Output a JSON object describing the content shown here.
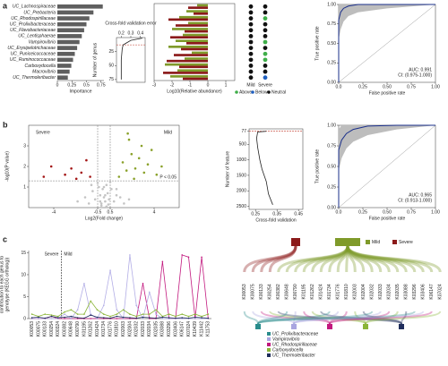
{
  "panels": [
    "a",
    "b",
    "c"
  ],
  "chart_data": [
    {
      "type": "hbar",
      "xlabel": "Importance",
      "categories": [
        "UC_Lachnospiraceae",
        "UC_Prebacteria",
        "UC_Rhodospirillaceae",
        "UC_Prolixibacteraceae",
        "UC_Flavobacteriaceae",
        "UC_Lentisphaerae",
        "Vampirovibrio",
        "UC_Erysipelotrichaceae",
        "UC_Puniceicoccaceae",
        "UC_Ruminococcaceae",
        "Carboxydocella",
        "Macrovibrio",
        "UC_Thermoleribacter"
      ],
      "values": [
        0.78,
        0.62,
        0.55,
        0.5,
        0.46,
        0.42,
        0.38,
        0.34,
        0.3,
        0.27,
        0.24,
        0.21,
        0.18
      ],
      "color": "#5f5f5f",
      "xlim": [
        0,
        0.8
      ],
      "xticks": [
        0,
        0.25,
        0.5,
        0.75
      ]
    },
    {
      "type": "line",
      "title": "Cross-fold validation error",
      "ylabel": "Number of genus",
      "x": [
        0.42,
        0.3,
        0.25,
        0.22,
        0.21,
        0.2,
        0.2
      ],
      "values": [
        1,
        5,
        10,
        13,
        20,
        40,
        75
      ],
      "color": "#222222",
      "threshold": 13,
      "threshold_color": "#c0392b",
      "xlim": [
        0.15,
        0.45
      ],
      "xticks": [
        0.2,
        0.3,
        0.4
      ],
      "ylim": [
        0,
        80
      ],
      "yticks": [
        25,
        50,
        75
      ],
      "y_reversed": true
    },
    {
      "type": "range",
      "xlabel": "Log10(Relative abundance)",
      "series": [
        {
          "color": "#7f9a2a",
          "values": [
            -0.6,
            -1.2,
            -1.6,
            -1.1,
            -2.0,
            -1.4,
            -1.8,
            -2.2,
            -0.9,
            -1.3,
            -2.4,
            -1.7,
            -2.1
          ]
        },
        {
          "color": "#8b1a1a",
          "values": [
            -1.1,
            -0.8,
            -2.2,
            -1.8,
            -1.3,
            -2.1,
            -1.2,
            -1.5,
            -1.9,
            -2.3,
            -1.6,
            -2.5,
            -1.4
          ]
        }
      ],
      "xlim": [
        -3,
        1.5
      ],
      "xticks": [
        -3,
        -2,
        -1,
        0,
        1
      ]
    },
    {
      "type": "dots",
      "columns": [
        "Mild",
        "Severe"
      ],
      "legend": [
        {
          "name": "Above",
          "color": "#3fae49"
        },
        {
          "name": "Below",
          "color": "#1f5fbf"
        },
        {
          "name": "Neutral",
          "color": "#111111"
        }
      ],
      "cells": [
        [
          "Neutral",
          "Neutral"
        ],
        [
          "Neutral",
          "Neutral"
        ],
        [
          "Neutral",
          "Above"
        ],
        [
          "Neutral",
          "Neutral"
        ],
        [
          "Neutral",
          "Neutral"
        ],
        [
          "Neutral",
          "Neutral"
        ],
        [
          "Neutral",
          "Above"
        ],
        [
          "Neutral",
          "Neutral"
        ],
        [
          "Neutral",
          "Above"
        ],
        [
          "Neutral",
          "Above"
        ],
        [
          "Neutral",
          "Neutral"
        ],
        [
          "Neutral",
          "Neutral"
        ],
        [
          "Neutral",
          "Below"
        ]
      ]
    },
    {
      "type": "roc",
      "xlabel": "False positive rate",
      "ylabel": "True positive rate",
      "annotation": [
        "AUC: 0.991",
        "CI: (0.975-1.000)"
      ],
      "x": [
        0,
        0,
        0.02,
        0.05,
        0.1,
        0.2,
        0.5,
        1
      ],
      "values": [
        0,
        0.8,
        0.9,
        0.95,
        0.98,
        1,
        1,
        1
      ],
      "ci_lower": [
        0,
        0.55,
        0.68,
        0.78,
        0.85,
        0.9,
        0.95,
        1
      ],
      "ci_upper": [
        0,
        1,
        1,
        1,
        1,
        1,
        1,
        1
      ],
      "color": "#1a2f8a",
      "band_color": "#bdbdbd",
      "xlim": [
        0,
        1
      ],
      "ylim": [
        0,
        1
      ],
      "xticks": [
        {
          "value": 0,
          "label": "0.0"
        },
        0.25,
        {
          "value": 0.5,
          "label": "0.50"
        },
        0.75,
        {
          "value": 1,
          "label": "1.00"
        }
      ],
      "yticks": [
        {
          "value": 0,
          "label": "0.00"
        },
        0.25,
        {
          "value": 0.5,
          "label": "0.50"
        },
        0.75,
        {
          "value": 1,
          "label": "1.00"
        }
      ]
    },
    {
      "type": "scatter",
      "xlabel": "Log2(Fold change)",
      "ylabel": "-log10(P value)",
      "annotation": "P < 0.05",
      "threshold": 1.3,
      "vlines": [
        -0.5,
        0.5
      ],
      "series": [
        {
          "color": "#c4c4c4",
          "x": [
            -2.1,
            -1.5,
            -1.2,
            -0.9,
            -0.7,
            -0.4,
            -0.3,
            -0.2,
            -0.1,
            0,
            0.1,
            0.2,
            0.3,
            0.4,
            0.6,
            0.8,
            1.0,
            1.3,
            1.6,
            2.0,
            -0.5,
            0.5,
            -0.2,
            0.2,
            0,
            -1,
            1,
            0.1,
            -0.3,
            0.35
          ],
          "values": [
            0.3,
            0.5,
            0.2,
            0.8,
            0.4,
            1.0,
            0.6,
            0.2,
            0.9,
            0.5,
            0.3,
            1.1,
            0.7,
            0.4,
            0.9,
            0.3,
            0.6,
            0.5,
            0.2,
            0.4,
            1.2,
            1.25,
            0.1,
            0.05,
            1.0,
            1.1,
            0.9,
            0.6,
            0.3,
            0.15
          ]
        },
        {
          "name": "Severe",
          "color": "#a31515",
          "x": [
            -4.8,
            -4.2,
            -3.1,
            -2.6,
            -2.2,
            -1.8,
            -1.4,
            -1.1
          ],
          "values": [
            1.5,
            2.0,
            1.6,
            1.9,
            1.4,
            1.7,
            2.3,
            1.5
          ]
        },
        {
          "name": "Mild",
          "color": "#8aa12a",
          "x": [
            1.2,
            1.5,
            1.8,
            2.0,
            2.2,
            2.5,
            2.8,
            3.0,
            3.2,
            3.5,
            3.8,
            4.2,
            4.6,
            2.4,
            1.9
          ],
          "values": [
            1.5,
            2.2,
            1.8,
            3.3,
            2.6,
            1.9,
            2.4,
            3.0,
            1.7,
            2.1,
            2.8,
            1.6,
            2.0,
            1.4,
            3.6
          ]
        }
      ],
      "xlim": [
        -6,
        6
      ],
      "xticks": [
        -4,
        -0.5,
        0.5,
        4
      ],
      "ylim": [
        0,
        4
      ],
      "yticks": [
        1,
        2,
        3
      ]
    },
    {
      "type": "line",
      "xlabel": "Cross-fold validation",
      "ylabel": "Number of feature",
      "x": [
        0.3,
        0.26,
        0.255,
        0.26,
        0.27,
        0.28,
        0.3,
        0.31,
        0.33
      ],
      "values": [
        77,
        100,
        300,
        600,
        1000,
        1300,
        1700,
        2100,
        2450
      ],
      "color": "#222222",
      "threshold": 77,
      "threshold_color": "#c0392b",
      "xlim": [
        0.22,
        0.47
      ],
      "xticks": [
        0.25,
        0.35,
        0.45
      ],
      "ylim": [
        0,
        2600
      ],
      "yticks": [
        77,
        500,
        1000,
        1500,
        2000,
        2500
      ],
      "y_reversed": true
    },
    {
      "type": "roc",
      "xlabel": "False positive rate",
      "ylabel": "True positive rate",
      "annotation": [
        "AUC: 0.965",
        "CI: (0.913-1.000)"
      ],
      "x": [
        0,
        0,
        0.03,
        0.08,
        0.15,
        0.3,
        0.6,
        1
      ],
      "values": [
        0,
        0.7,
        0.82,
        0.9,
        0.95,
        0.99,
        1,
        1
      ],
      "ci_lower": [
        0,
        0.45,
        0.6,
        0.72,
        0.8,
        0.88,
        0.95,
        1
      ],
      "ci_upper": [
        0,
        0.95,
        1,
        1,
        1,
        1,
        1,
        1
      ],
      "color": "#1a2f8a",
      "band_color": "#bdbdbd",
      "xlim": [
        0,
        1
      ],
      "ylim": [
        0,
        1
      ],
      "xticks": [
        {
          "value": 0,
          "label": "0.0"
        },
        0.25,
        {
          "value": 0.5,
          "label": "0.50"
        },
        0.75,
        {
          "value": 1,
          "label": "1.00"
        }
      ],
      "yticks": [
        {
          "value": 0,
          "label": "0.00"
        },
        0.25,
        {
          "value": 0.5,
          "label": "0.50"
        },
        0.75,
        {
          "value": 1,
          "label": "1.00"
        }
      ]
    },
    {
      "type": "multiline",
      "ylabel": [
        "Relative abundance (% of",
        "contribution to each genus to",
        "genotype (KEGG ortholog))"
      ],
      "annotation": [
        "Severe",
        "Mild"
      ],
      "divider_index": 5,
      "categories": [
        "K00053",
        "K00075",
        "K00133",
        "K00254",
        "K00324",
        "K00382",
        "K00648",
        "K00790",
        "K01195",
        "K01262",
        "K01424",
        "K01734",
        "K01776",
        "K01810",
        "K02003",
        "K02004",
        "K02032",
        "K02033",
        "K02034",
        "K02035",
        "K03088",
        "K03296",
        "K03406",
        "K06147",
        "K07024",
        "K10439",
        "K11442",
        "K11753"
      ],
      "series": [
        {
          "color": "#c2187e",
          "values": [
            0,
            0,
            0,
            0.5,
            0,
            0,
            0,
            0,
            0,
            0,
            0,
            0,
            0,
            0,
            0,
            0,
            0,
            8,
            0,
            0,
            13,
            0,
            0,
            14.5,
            14,
            0,
            14,
            0
          ]
        },
        {
          "color": "#b3aee6",
          "values": [
            0,
            0,
            0,
            0,
            0,
            1,
            0,
            2,
            8,
            1,
            0,
            3,
            11,
            2,
            0,
            14.5,
            3,
            0,
            6,
            1,
            0,
            0,
            0,
            0,
            0,
            0,
            0,
            0
          ]
        },
        {
          "color": "#8ab537",
          "values": [
            1,
            0.5,
            1,
            0.8,
            0.5,
            1.5,
            2,
            1,
            1,
            4,
            2,
            1,
            0.5,
            1,
            2,
            1,
            0.5,
            1,
            1,
            2,
            0.5,
            1,
            0.5,
            1,
            0.5,
            1,
            0.5,
            1
          ]
        },
        {
          "color": "#1f2d5c",
          "values": [
            0.2,
            0.3,
            0.1,
            0.5,
            0.2,
            0.3,
            0.5,
            0.2,
            0.1,
            0.8,
            0.3,
            0.2,
            0.1,
            0.5,
            0.3,
            0.2,
            0.1,
            0.3,
            0.2,
            0.1,
            0.3,
            0.2,
            0.1,
            0.2,
            0.1,
            0.3,
            0.2,
            0.1
          ]
        }
      ],
      "ylim": [
        0,
        15.5
      ],
      "yticks": [
        0,
        5,
        10,
        15
      ]
    },
    {
      "type": "sankey",
      "groups": [
        {
          "name": "Mild",
          "color": "#7f9a2a"
        },
        {
          "name": "Severe",
          "color": "#8b1a1a"
        }
      ],
      "categories": [
        "K00053",
        "K00075",
        "K00133",
        "K00254",
        "K00382",
        "K00648",
        "K00790",
        "K01195",
        "K01262",
        "K01424",
        "K01734",
        "K01776",
        "K01810",
        "K02003",
        "K02004",
        "K02032",
        "K02033",
        "K02034",
        "K02035",
        "K03088",
        "K03296",
        "K03406",
        "K06147",
        "K07024"
      ],
      "taxa": [
        {
          "name": "UC_Prolixibacteraceae",
          "color": "#2a8c8c"
        },
        {
          "name": "Vampirovibrio",
          "color": "#a9a5e0"
        },
        {
          "name": "UC_Rhodospirillaceae",
          "color": "#c2187e"
        },
        {
          "name": "Carboxydocella",
          "color": "#8ab537"
        },
        {
          "name": "UC_Thermoleribacter",
          "color": "#1f2d5c"
        }
      ]
    }
  ]
}
